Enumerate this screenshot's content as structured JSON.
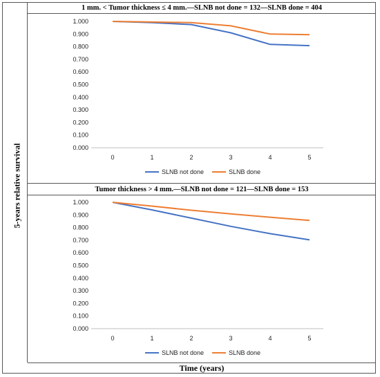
{
  "figure": {
    "ylabel": "5-years relative survival",
    "xlabel": "Time (years)"
  },
  "colors": {
    "SLNB not done": "#4472C4",
    "SLNB done": "#ED7D31",
    "grid": "#d9d9d9",
    "axis": "#bfbfbf"
  },
  "chart_data": [
    {
      "type": "line",
      "title": "1 mm. < Tumor thickness ≤ 4 mm.—SLNB not done = 132—SLNB done = 404",
      "x": [
        "0",
        "1",
        "2",
        "3",
        "4",
        "5"
      ],
      "ylim": [
        0,
        1
      ],
      "yticks": [
        "0.000",
        "0.100",
        "0.200",
        "0.300",
        "0.400",
        "0.500",
        "0.600",
        "0.700",
        "0.800",
        "0.900",
        "1.000"
      ],
      "legend_position": "bottom",
      "grid": false,
      "series": [
        {
          "name": "SLNB not done",
          "values": [
            1.0,
            0.99,
            0.975,
            0.91,
            0.818,
            0.808
          ]
        },
        {
          "name": "SLNB done",
          "values": [
            1.0,
            0.995,
            0.99,
            0.965,
            0.9,
            0.895
          ]
        }
      ]
    },
    {
      "type": "line",
      "title": "Tumor thickness > 4 mm.—SLNB not done = 121—SLNB done = 153",
      "x": [
        "0",
        "1",
        "2",
        "3",
        "4",
        "5"
      ],
      "ylim": [
        0,
        1
      ],
      "yticks": [
        "0.000",
        "0.100",
        "0.200",
        "0.300",
        "0.400",
        "0.500",
        "0.600",
        "0.700",
        "0.800",
        "0.900",
        "1.000"
      ],
      "legend_position": "bottom",
      "grid": false,
      "series": [
        {
          "name": "SLNB not done",
          "values": [
            1.0,
            0.94,
            0.875,
            0.81,
            0.752,
            0.703
          ]
        },
        {
          "name": "SLNB done",
          "values": [
            1.0,
            0.97,
            0.937,
            0.908,
            0.882,
            0.857
          ]
        }
      ]
    }
  ]
}
